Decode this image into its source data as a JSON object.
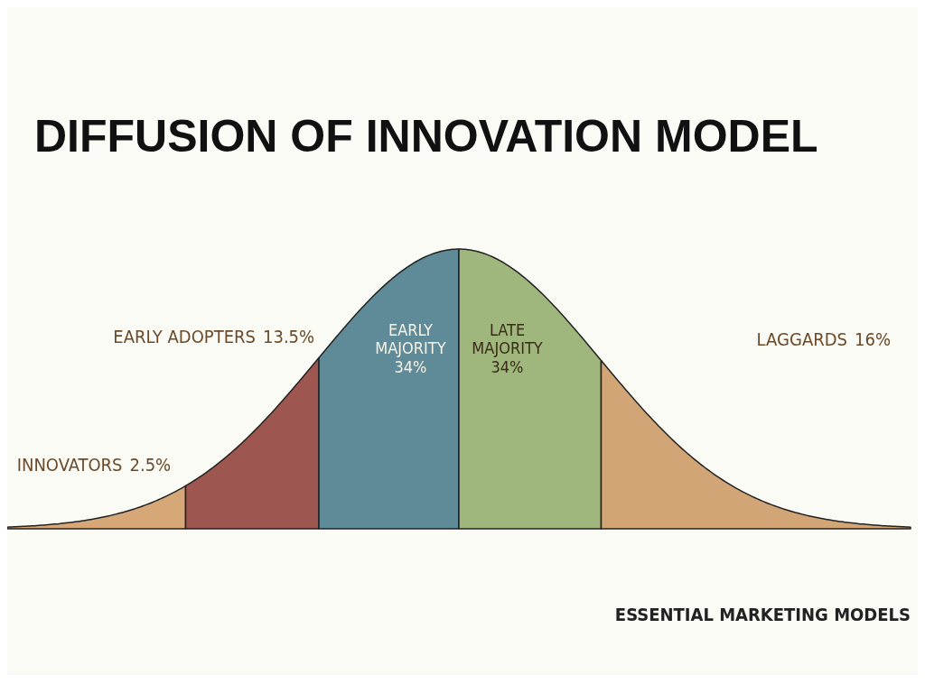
{
  "chart_data": {
    "type": "other",
    "title": "DIFFUSION OF INNOVATION MODEL",
    "categories": [
      "INNOVATORS",
      "EARLY ADOPTERS",
      "EARLY MAJORITY",
      "LATE MAJORITY",
      "LAGGARDS"
    ],
    "values": [
      2.5,
      13.5,
      34,
      34,
      16
    ],
    "value_labels": [
      "2.5%",
      "13.5%",
      "34%",
      "34%",
      "16%"
    ],
    "colors": [
      "#d6a878",
      "#9e5750",
      "#5f8b98",
      "#9fb77c",
      "#d2a577"
    ],
    "annotations": [
      "ESSENTIAL MARKETING MODELS"
    ]
  }
}
